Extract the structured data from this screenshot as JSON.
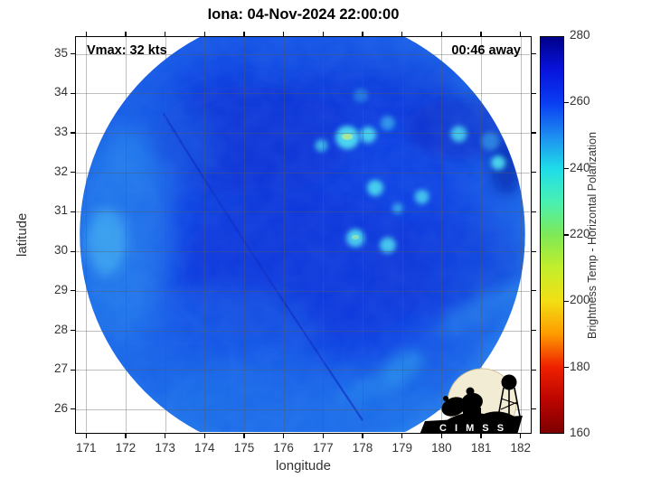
{
  "figure": {
    "title": "Iona: 04-Nov-2024 22:00:00"
  },
  "annotations": {
    "vmax": "Vmax: 32 kts",
    "eta": "00:46 away"
  },
  "axes": {
    "x": {
      "label": "longitude",
      "range": [
        170.72,
        182.28
      ],
      "ticks": [
        171,
        172,
        173,
        174,
        175,
        176,
        177,
        178,
        179,
        180,
        181,
        182
      ]
    },
    "y": {
      "label": "latitude",
      "range": [
        25.38,
        35.45
      ],
      "ticks": [
        26,
        27,
        28,
        29,
        30,
        31,
        32,
        33,
        34,
        35
      ]
    }
  },
  "colorbar": {
    "label": "Brightness Temp - Horizontal Polarization",
    "range": [
      160,
      280
    ],
    "ticks": [
      280,
      260,
      240,
      220,
      200,
      180,
      160
    ],
    "colors": {
      "280": "#000089",
      "260": "#0a3df2",
      "240": "#1fdde9",
      "220": "#7fe956",
      "200": "#f2df14",
      "180": "#ef2100",
      "160": "#7d0000"
    }
  },
  "logo": {
    "text": "C I M S S"
  },
  "chart_data": {
    "type": "heatmap",
    "title": "Iona: 04-Nov-2024 22:00:00",
    "xlabel": "longitude",
    "ylabel": "latitude",
    "xlim": [
      170.72,
      182.28
    ],
    "ylim": [
      25.38,
      35.45
    ],
    "grid": true,
    "legend_position": "right-colorbar",
    "colorbar_label": "Brightness Temp - Horizontal Polarization",
    "color_scale": {
      "min": 160,
      "max": 280,
      "colormap": "reversed-jet (dark red low, navy high)"
    },
    "swath": {
      "shape": "circular microwave satellite swath",
      "center_lon": 176.5,
      "center_lat": 30.4,
      "radius_deg": 5.7
    },
    "background_brightness_temp_K": 255,
    "features": [
      {
        "desc": "bright cold convective cells (~235-240 K, cyan)",
        "points_lon_lat": [
          [
            177.6,
            32.9
          ],
          [
            178.2,
            33.0
          ],
          [
            176.9,
            32.7
          ],
          [
            180.5,
            33.0
          ],
          [
            181.5,
            32.3
          ],
          [
            178.3,
            31.6
          ],
          [
            179.5,
            31.4
          ],
          [
            178.9,
            31.1
          ],
          [
            177.8,
            30.3
          ],
          [
            178.7,
            30.1
          ],
          [
            179.1,
            26.9
          ]
        ]
      },
      {
        "desc": "lighter warm-rain band along western rim (~245 K)",
        "points_lon_lat": [
          [
            171.4,
            30.3
          ],
          [
            172.3,
            28.8
          ]
        ]
      },
      {
        "desc": "darker (~258-262 K) patches",
        "points_lon_lat": [
          [
            175.1,
            32.6
          ],
          [
            176.5,
            29.6
          ],
          [
            180.6,
            32.9
          ]
        ]
      },
      {
        "desc": "scan seam line crossing swath",
        "points_lon_lat": [
          [
            172.9,
            33.5
          ],
          [
            178.0,
            25.7
          ]
        ]
      }
    ],
    "annotations": [
      "Vmax: 32 kts",
      "00:46 away"
    ]
  }
}
